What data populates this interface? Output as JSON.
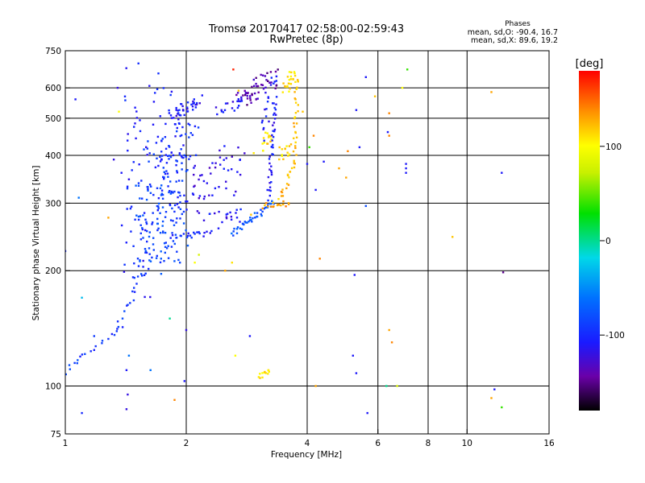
{
  "header": {
    "title": "Tromsø 20170417 02:58:00-02:59:43",
    "subtitle": "RwPretec (8p)"
  },
  "phase_box": {
    "title": "Phases",
    "o_line": "mean, sd,O: -90.4, 16.7",
    "x_line": "mean, sd,X: 89.6, 19.2"
  },
  "colorbar": {
    "unit": "[deg]",
    "ticks": [
      {
        "value": 100,
        "label": "100"
      },
      {
        "value": 0,
        "label": "0"
      },
      {
        "value": -100,
        "label": "-100"
      }
    ],
    "range": [
      -180,
      180
    ]
  },
  "chart_data": {
    "type": "scatter",
    "xlabel": "Frequency [MHz]",
    "ylabel": "Stationary phase Virtual Height [km]",
    "xscale": "log",
    "yscale": "log",
    "xlim": [
      1,
      16
    ],
    "ylim": [
      75,
      750
    ],
    "xticks": [
      {
        "value": 1,
        "label": "1"
      },
      {
        "value": 2,
        "label": "2"
      },
      {
        "value": 4,
        "label": "4"
      },
      {
        "value": 6,
        "label": "6"
      },
      {
        "value": 8,
        "label": "8"
      },
      {
        "value": 10,
        "label": "10"
      },
      {
        "value": 16,
        "label": "16"
      }
    ],
    "xgrid": [
      2,
      4,
      6,
      8,
      10
    ],
    "yticks": [
      {
        "value": 75,
        "label": "75"
      },
      {
        "value": 100,
        "label": "100"
      },
      {
        "value": 200,
        "label": "200"
      },
      {
        "value": 300,
        "label": "300"
      },
      {
        "value": 400,
        "label": "400"
      },
      {
        "value": 500,
        "label": "500"
      },
      {
        "value": 600,
        "label": "600"
      },
      {
        "value": 750,
        "label": "750"
      }
    ],
    "ygrid": [
      100,
      200,
      300,
      400,
      500,
      600
    ],
    "color_encodes": "phase (deg)",
    "segments": [
      {
        "f0": 1.0,
        "f1": 1.08,
        "h0": 108,
        "h1": 118,
        "n": 6,
        "phase": -85,
        "spread": 0.01
      },
      {
        "f0": 1.08,
        "f1": 1.35,
        "h0": 118,
        "h1": 140,
        "n": 12,
        "phase": -95,
        "spread": 0.01
      },
      {
        "f0": 1.35,
        "f1": 1.52,
        "h0": 140,
        "h1": 195,
        "n": 16,
        "phase": -90,
        "spread": 0.02
      },
      {
        "f0": 1.48,
        "f1": 1.62,
        "h0": 170,
        "h1": 620,
        "n": 60,
        "phase": -105,
        "spread": 0.08
      },
      {
        "f0": 1.52,
        "f1": 1.92,
        "h0": 210,
        "h1": 320,
        "n": 110,
        "phase": -85,
        "spread": 0.06
      },
      {
        "f0": 1.62,
        "f1": 2.02,
        "h0": 300,
        "h1": 440,
        "n": 80,
        "phase": -95,
        "spread": 0.06
      },
      {
        "f0": 1.75,
        "f1": 2.1,
        "h0": 390,
        "h1": 560,
        "n": 45,
        "phase": -100,
        "spread": 0.05
      },
      {
        "f0": 1.85,
        "f1": 2.15,
        "h0": 500,
        "h1": 560,
        "n": 30,
        "phase": -110,
        "spread": 0.02
      },
      {
        "f0": 1.85,
        "f1": 2.3,
        "h0": 244,
        "h1": 250,
        "n": 22,
        "phase": -100,
        "spread": 0.01
      },
      {
        "f0": 2.05,
        "f1": 2.35,
        "h0": 290,
        "h1": 390,
        "n": 24,
        "phase": -120,
        "spread": 0.05
      },
      {
        "f0": 2.3,
        "f1": 2.8,
        "h0": 270,
        "h1": 280,
        "n": 18,
        "phase": -110,
        "spread": 0.03
      },
      {
        "f0": 2.4,
        "f1": 2.75,
        "h0": 330,
        "h1": 430,
        "n": 22,
        "phase": -115,
        "spread": 0.04
      },
      {
        "f0": 2.4,
        "f1": 2.8,
        "h0": 520,
        "h1": 560,
        "n": 20,
        "phase": -110,
        "spread": 0.02
      },
      {
        "f0": 2.6,
        "f1": 3.3,
        "h0": 250,
        "h1": 300,
        "n": 40,
        "phase": -75,
        "spread": 0.01
      },
      {
        "f0": 2.75,
        "f1": 3.3,
        "h0": 560,
        "h1": 640,
        "n": 50,
        "phase": -140,
        "spread": 0.03
      },
      {
        "f0": 3.0,
        "f1": 3.3,
        "h0": 420,
        "h1": 450,
        "n": 16,
        "phase": 110,
        "spread": 0.03
      },
      {
        "f0": 3.1,
        "f1": 3.3,
        "h0": 450,
        "h1": 650,
        "n": 20,
        "phase": -110,
        "spread": 0.02
      },
      {
        "f0": 3.2,
        "f1": 3.33,
        "h0": 310,
        "h1": 560,
        "n": 40,
        "phase": -110,
        "spread": 0.01
      },
      {
        "f0": 3.1,
        "f1": 3.6,
        "h0": 295,
        "h1": 300,
        "n": 16,
        "phase": 130,
        "spread": 0.01
      },
      {
        "f0": 3.4,
        "f1": 3.75,
        "h0": 300,
        "h1": 390,
        "n": 20,
        "phase": 125,
        "spread": 0.01
      },
      {
        "f0": 3.4,
        "f1": 3.6,
        "h0": 400,
        "h1": 420,
        "n": 14,
        "phase": 110,
        "spread": 0.02
      },
      {
        "f0": 3.5,
        "f1": 3.7,
        "h0": 600,
        "h1": 650,
        "n": 22,
        "phase": 110,
        "spread": 0.02
      },
      {
        "f0": 3.72,
        "f1": 3.78,
        "h0": 400,
        "h1": 640,
        "n": 26,
        "phase": 120,
        "spread": 0.01
      },
      {
        "f0": 3.05,
        "f1": 3.2,
        "h0": 105,
        "h1": 110,
        "n": 12,
        "phase": 110,
        "spread": 0.01
      }
    ],
    "scatter": [
      {
        "f": 1.06,
        "h": 560,
        "phase": -110
      },
      {
        "f": 1.08,
        "h": 310,
        "phase": -60
      },
      {
        "f": 1.0,
        "h": 225,
        "phase": -100
      },
      {
        "f": 1.1,
        "h": 170,
        "phase": -30
      },
      {
        "f": 1.1,
        "h": 85,
        "phase": -100
      },
      {
        "f": 1.18,
        "h": 135,
        "phase": -90
      },
      {
        "f": 1.35,
        "h": 600,
        "phase": -120
      },
      {
        "f": 1.36,
        "h": 520,
        "phase": 100
      },
      {
        "f": 1.32,
        "h": 390,
        "phase": -120
      },
      {
        "f": 1.38,
        "h": 360,
        "phase": -110
      },
      {
        "f": 1.28,
        "h": 275,
        "phase": 130
      },
      {
        "f": 1.42,
        "h": 110,
        "phase": -110
      },
      {
        "f": 1.43,
        "h": 95,
        "phase": -120
      },
      {
        "f": 1.42,
        "h": 87,
        "phase": -120
      },
      {
        "f": 1.44,
        "h": 120,
        "phase": -60
      },
      {
        "f": 1.63,
        "h": 110,
        "phase": -60
      },
      {
        "f": 1.87,
        "h": 92,
        "phase": 140
      },
      {
        "f": 1.98,
        "h": 103,
        "phase": -110
      },
      {
        "f": 2.0,
        "h": 140,
        "phase": -120
      },
      {
        "f": 1.82,
        "h": 150,
        "phase": 0
      },
      {
        "f": 2.1,
        "h": 210,
        "phase": 100
      },
      {
        "f": 2.15,
        "h": 220,
        "phase": 80
      },
      {
        "f": 2.5,
        "h": 200,
        "phase": 130
      },
      {
        "f": 2.6,
        "h": 210,
        "phase": 110
      },
      {
        "f": 2.62,
        "h": 670,
        "phase": 170
      },
      {
        "f": 2.65,
        "h": 120,
        "phase": 100
      },
      {
        "f": 2.88,
        "h": 135,
        "phase": -110
      },
      {
        "f": 2.7,
        "h": 590,
        "phase": 120
      },
      {
        "f": 2.9,
        "h": 280,
        "phase": 120
      },
      {
        "f": 3.9,
        "h": 520,
        "phase": 120
      },
      {
        "f": 4.0,
        "h": 380,
        "phase": -110
      },
      {
        "f": 4.2,
        "h": 325,
        "phase": -110
      },
      {
        "f": 4.15,
        "h": 450,
        "phase": 140
      },
      {
        "f": 4.3,
        "h": 215,
        "phase": 140
      },
      {
        "f": 4.2,
        "h": 100,
        "phase": 130
      },
      {
        "f": 4.05,
        "h": 420,
        "phase": 40
      },
      {
        "f": 4.4,
        "h": 385,
        "phase": -110
      },
      {
        "f": 4.8,
        "h": 370,
        "phase": 130
      },
      {
        "f": 5.0,
        "h": 350,
        "phase": 130
      },
      {
        "f": 5.05,
        "h": 410,
        "phase": 140
      },
      {
        "f": 5.2,
        "h": 120,
        "phase": -110
      },
      {
        "f": 5.25,
        "h": 195,
        "phase": -110
      },
      {
        "f": 5.3,
        "h": 108,
        "phase": -110
      },
      {
        "f": 5.3,
        "h": 525,
        "phase": -110
      },
      {
        "f": 5.6,
        "h": 295,
        "phase": -80
      },
      {
        "f": 5.65,
        "h": 85,
        "phase": -110
      },
      {
        "f": 5.6,
        "h": 640,
        "phase": -110
      },
      {
        "f": 5.4,
        "h": 420,
        "phase": -110
      },
      {
        "f": 5.9,
        "h": 570,
        "phase": 120
      },
      {
        "f": 6.3,
        "h": 100,
        "phase": 0
      },
      {
        "f": 6.35,
        "h": 460,
        "phase": -110
      },
      {
        "f": 6.4,
        "h": 450,
        "phase": 140
      },
      {
        "f": 6.4,
        "h": 515,
        "phase": 140
      },
      {
        "f": 6.4,
        "h": 140,
        "phase": 130
      },
      {
        "f": 6.5,
        "h": 130,
        "phase": 140
      },
      {
        "f": 6.7,
        "h": 100,
        "phase": 80
      },
      {
        "f": 6.9,
        "h": 600,
        "phase": 100
      },
      {
        "f": 7.1,
        "h": 670,
        "phase": 40
      },
      {
        "f": 7.05,
        "h": 380,
        "phase": -110
      },
      {
        "f": 7.05,
        "h": 370,
        "phase": -110
      },
      {
        "f": 7.05,
        "h": 360,
        "phase": -110
      },
      {
        "f": 9.2,
        "h": 245,
        "phase": 120
      },
      {
        "f": 11.5,
        "h": 585,
        "phase": 130
      },
      {
        "f": 11.7,
        "h": 98,
        "phase": -110
      },
      {
        "f": 12.2,
        "h": 360,
        "phase": -110
      },
      {
        "f": 12.3,
        "h": 198,
        "phase": -150
      },
      {
        "f": 12.2,
        "h": 88,
        "phase": 40
      },
      {
        "f": 11.5,
        "h": 93,
        "phase": 130
      }
    ]
  }
}
